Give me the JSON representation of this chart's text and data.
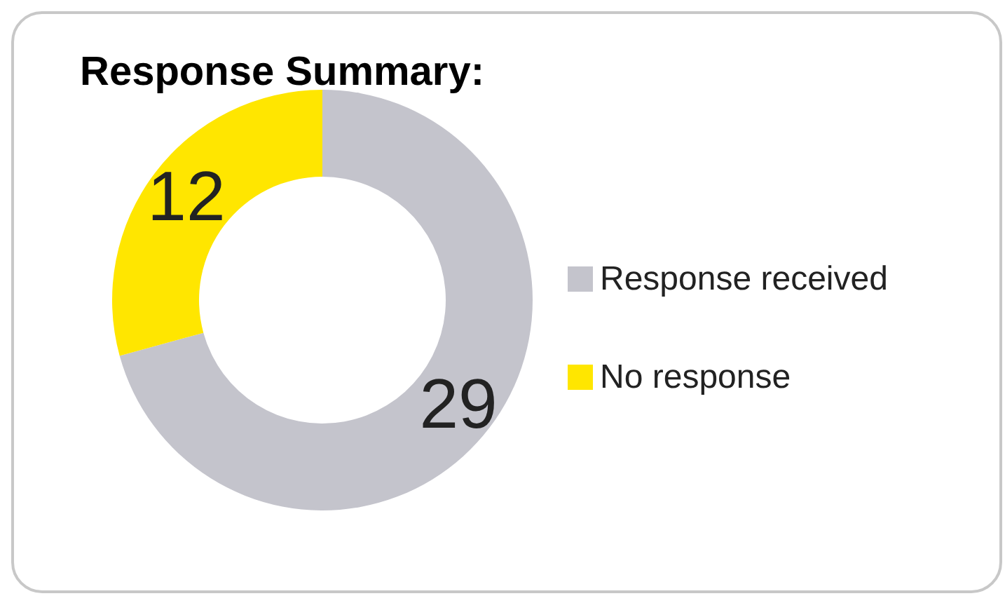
{
  "chart_data": {
    "type": "donut",
    "title": "Response Summary:",
    "categories": [
      "Response received",
      "No response"
    ],
    "values": [
      29,
      12
    ],
    "colors": [
      "#c4c4cc",
      "#ffe600"
    ],
    "data_labels": true,
    "legend": "right"
  }
}
